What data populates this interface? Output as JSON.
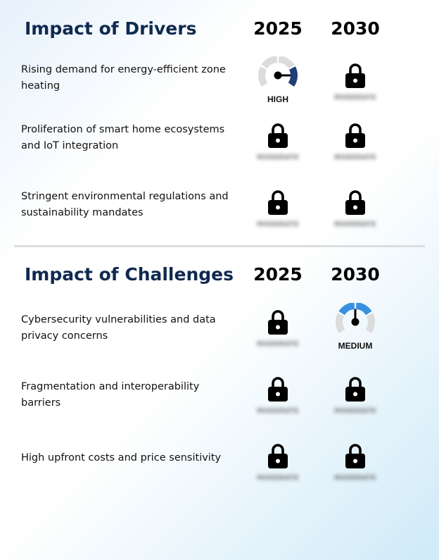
{
  "drivers": {
    "title": "Impact of Drivers",
    "year_a": "2025",
    "year_b": "2030",
    "rows": [
      {
        "label": "Rising demand for energy-efficient zone heating",
        "a": {
          "type": "gauge",
          "level": "HIGH",
          "color": "#1f3f77"
        },
        "b": {
          "type": "locked",
          "hidden_text": "MODERATE"
        }
      },
      {
        "label": "Proliferation of smart home ecosystems and IoT integration",
        "a": {
          "type": "locked",
          "hidden_text": "MODERATE"
        },
        "b": {
          "type": "locked",
          "hidden_text": "MODERATE"
        }
      },
      {
        "label": "Stringent environmental regulations and sustainability mandates",
        "a": {
          "type": "locked",
          "hidden_text": "MODERATE"
        },
        "b": {
          "type": "locked",
          "hidden_text": "MODERATE"
        }
      }
    ]
  },
  "challenges": {
    "title": "Impact of Challenges",
    "year_a": "2025",
    "year_b": "2030",
    "rows": [
      {
        "label": "Cybersecurity vulnerabilities and data privacy concerns",
        "a": {
          "type": "locked",
          "hidden_text": "MODERATE"
        },
        "b": {
          "type": "gauge",
          "level": "MEDIUM",
          "color": "#3a8fe0"
        }
      },
      {
        "label": "Fragmentation and interoperability barriers",
        "a": {
          "type": "locked",
          "hidden_text": "MODERATE"
        },
        "b": {
          "type": "locked",
          "hidden_text": "MODERATE"
        }
      },
      {
        "label": "High upfront costs and price sensitivity",
        "a": {
          "type": "locked",
          "hidden_text": "MODERATE"
        },
        "b": {
          "type": "locked",
          "hidden_text": "MODERATE"
        }
      }
    ]
  }
}
